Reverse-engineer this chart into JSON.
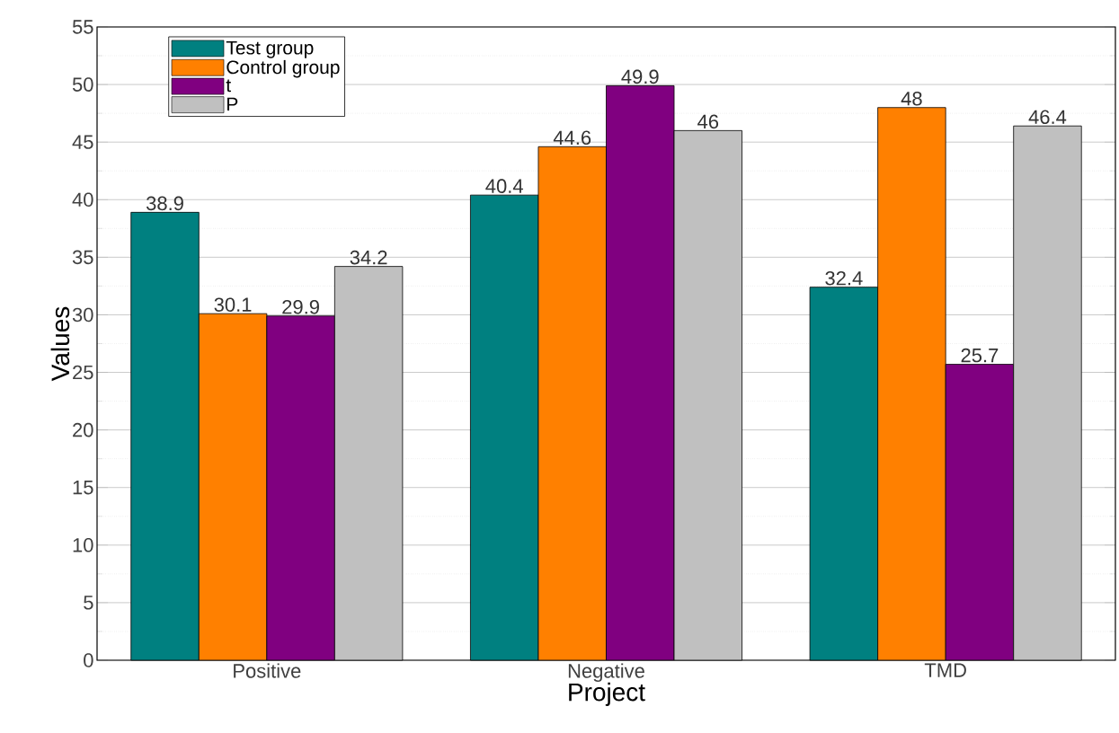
{
  "chart_data": {
    "type": "bar",
    "xlabel": "Project",
    "ylabel": "Values",
    "categories": [
      "Positive",
      "Negative",
      "TMD"
    ],
    "series": [
      {
        "name": "Test group",
        "color": "#008080",
        "values": [
          38.9,
          40.4,
          32.4
        ]
      },
      {
        "name": "Control group",
        "color": "#ff8000",
        "values": [
          30.1,
          44.6,
          48
        ]
      },
      {
        "name": "t",
        "color": "#800080",
        "values": [
          29.9,
          49.9,
          25.7
        ]
      },
      {
        "name": "P",
        "color": "#c0c0c0",
        "values": [
          34.2,
          46,
          46.4
        ]
      }
    ],
    "ylim": [
      0,
      55
    ],
    "yticks": [
      0,
      5,
      10,
      15,
      20,
      25,
      30,
      35,
      40,
      45,
      50,
      55
    ],
    "grid": "y",
    "legend": "top left",
    "data_labels": true
  }
}
